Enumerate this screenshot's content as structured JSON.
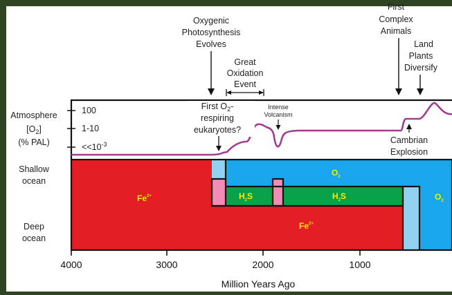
{
  "colors": {
    "frame": "#2e4422",
    "fe_red": "#e31e25",
    "o2_blue": "#1aa6ea",
    "h2s_green": "#0aa14b",
    "light_blue": "#90d2ef",
    "pink": "#f08cb6",
    "curve": "#a33c8f",
    "label_yellow": "#ffea00"
  },
  "atmosphere": {
    "title_line1": "Atmosphere",
    "title_line2": "[O",
    "title_sub": "2",
    "title_line2_end": "]",
    "title_line3": "(% PAL)",
    "levels": [
      "100",
      "1-10",
      "<<10"
    ],
    "levels_sup": "-3"
  },
  "ocean": {
    "shallow_line1": "Shallow",
    "shallow_line2": "ocean",
    "deep_line1": "Deep",
    "deep_line2": "ocean"
  },
  "chemistry": {
    "fe": "Fe",
    "fe_charge": "2+",
    "h2s_h": "H",
    "h2s_sub": "2",
    "h2s_s": "S",
    "o2_o": "O",
    "o2_sub": "2"
  },
  "events": {
    "oxygenic": [
      "Oxygenic",
      "Photosynthesis",
      "Evolves"
    ],
    "goe": [
      "Great",
      "Oxidation",
      "Event"
    ],
    "first_o2_line1a": "First O",
    "first_o2_sub": "2",
    "first_o2_line1b": "-",
    "first_o2_line2": "respiring",
    "first_o2_line3": "eukaryotes?",
    "volcanism": [
      "Intense",
      "Volcanism"
    ],
    "complex": [
      "First",
      "Complex",
      "Animals"
    ],
    "land": [
      "Land",
      "Plants",
      "Diversify"
    ],
    "cambrian": [
      "Cambrian",
      "Explosion"
    ]
  },
  "axis": {
    "ticks": [
      "4000",
      "3000",
      "2000",
      "1000"
    ],
    "title": "Million Years Ago"
  },
  "chart_data": {
    "type": "timeline",
    "x_unit": "Million Years Ago",
    "x_range": [
      4000,
      0
    ],
    "atmospheric_o2_levels": [
      "100",
      "1-10",
      "<<10-3"
    ],
    "ocean_chemistry": [
      {
        "zone": "shallow ocean",
        "from": 4000,
        "to": 2500,
        "chemistry": "Fe2+"
      },
      {
        "zone": "shallow ocean",
        "from": 2500,
        "to": 0,
        "chemistry": "O2"
      },
      {
        "zone": "mid ocean",
        "from": 2450,
        "to": 580,
        "chemistry": "H2S"
      },
      {
        "zone": "deep ocean",
        "from": 4000,
        "to": 580,
        "chemistry": "Fe2+"
      },
      {
        "zone": "whole ocean",
        "from": 580,
        "to": 0,
        "chemistry": "O2"
      }
    ],
    "events_mya": {
      "Oxygenic Photosynthesis Evolves": 2700,
      "Great Oxidation Event": [
        2400,
        2050
      ],
      "First O2-respiring eukaryotes?": 2400,
      "Intense Volcanism": 1900,
      "First Complex Animals": 600,
      "Cambrian Explosion": 540,
      "Land Plants Diversify": 400
    }
  }
}
